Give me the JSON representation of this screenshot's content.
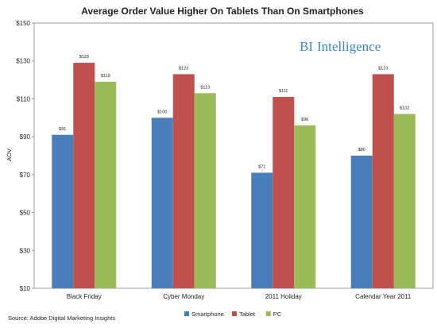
{
  "chart_data": {
    "type": "bar",
    "title": "Average Order Value Higher On Tablets Than On Smartphones",
    "ylabel": "AOV",
    "xlabel": "",
    "ylim": [
      10,
      150
    ],
    "yticks": [
      "$10",
      "$30",
      "$50",
      "$70",
      "$90",
      "$110",
      "$130",
      "$150"
    ],
    "ytick_values": [
      10,
      30,
      50,
      70,
      90,
      110,
      130,
      150
    ],
    "categories": [
      "Black Friday",
      "Cyber Monday",
      "2011 Holiday",
      "Calendar Year 2011"
    ],
    "series": [
      {
        "name": "Smartphone",
        "color": "#4a7ebb",
        "values": [
          91,
          100,
          71,
          80
        ],
        "labels": [
          "$91",
          "$100",
          "$71",
          "$80"
        ]
      },
      {
        "name": "Tablet",
        "color": "#c0504d",
        "values": [
          129,
          123,
          111,
          123
        ],
        "labels": [
          "$129",
          "$123",
          "$111",
          "$123"
        ]
      },
      {
        "name": "PC",
        "color": "#9bbb59",
        "values": [
          119,
          113,
          96,
          102
        ],
        "labels": [
          "$119",
          "$113",
          "$96",
          "$102"
        ]
      }
    ],
    "grid": false,
    "legend_position": "bottom"
  },
  "source": "Source: Adobe Digital Marketing Insights",
  "brand": {
    "first": "BI",
    "rest": "Intelligence"
  }
}
